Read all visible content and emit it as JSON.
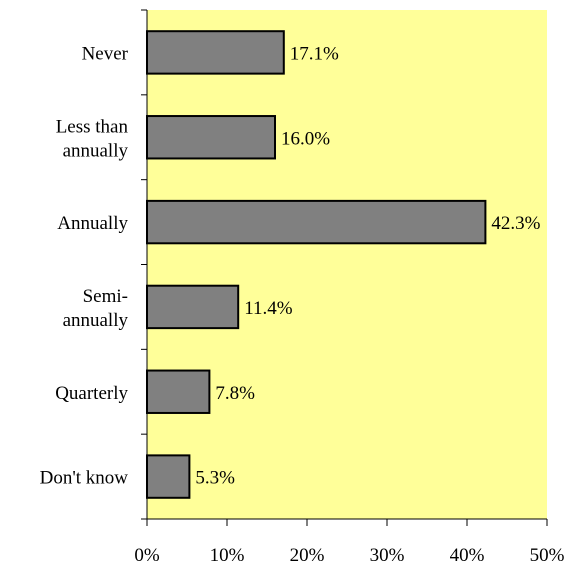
{
  "chart_data": {
    "type": "bar",
    "orientation": "horizontal",
    "title": "",
    "xlabel": "",
    "ylabel": "",
    "categories": [
      [
        "Never"
      ],
      [
        "Less than",
        "annually"
      ],
      [
        "Annually"
      ],
      [
        "Semi-",
        "annually"
      ],
      [
        "Quarterly"
      ],
      [
        "Don't know"
      ]
    ],
    "values": [
      17.1,
      16.0,
      42.3,
      11.4,
      7.8,
      5.3
    ],
    "value_labels": [
      "17.1%",
      "16.0%",
      "42.3%",
      "11.4%",
      "7.8%",
      "5.3%"
    ],
    "xlim": [
      0,
      50
    ],
    "xticks": [
      0,
      10,
      20,
      30,
      40,
      50
    ],
    "xtick_labels": [
      "0%",
      "10%",
      "20%",
      "30%",
      "40%",
      "50%"
    ],
    "grid": false,
    "legend": "none",
    "colors": {
      "plot_background": "#FFFF99",
      "bar_fill": "#808080",
      "bar_stroke": "#000000"
    }
  }
}
